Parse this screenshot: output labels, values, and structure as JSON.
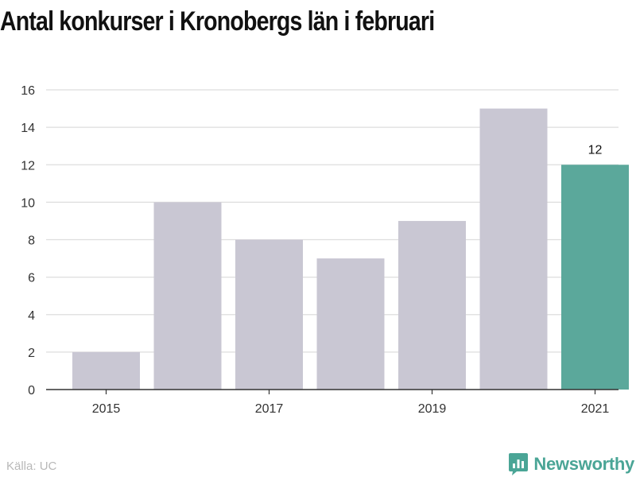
{
  "title": "Antal konkurser i Kronobergs län i februari",
  "source": "Källa: UC",
  "brand": {
    "name": "Newsworthy",
    "logo_icon": "newsworthy-logo-icon"
  },
  "colors": {
    "bar": "#c9c7d3",
    "highlight": "#5ba89b",
    "grid": "#dedede",
    "axis": "#333333",
    "text": "#333333",
    "brand": "#4aa596"
  },
  "chart_data": {
    "type": "bar",
    "categories": [
      "2015",
      "2016",
      "2017",
      "2018",
      "2019",
      "2020",
      "2021"
    ],
    "values": [
      2,
      10,
      8,
      7,
      9,
      15,
      12
    ],
    "x_tick_labels": [
      "2015",
      "2017",
      "2019",
      "2021"
    ],
    "y_ticks": [
      0,
      2,
      4,
      6,
      8,
      10,
      12,
      14,
      16
    ],
    "ylim": [
      0,
      16
    ],
    "grid": true,
    "highlight_category": "2021",
    "data_labels": [
      {
        "category": "2021",
        "label": "12"
      }
    ],
    "title": "Antal konkurser i Kronobergs län i februari",
    "xlabel": "",
    "ylabel": ""
  }
}
